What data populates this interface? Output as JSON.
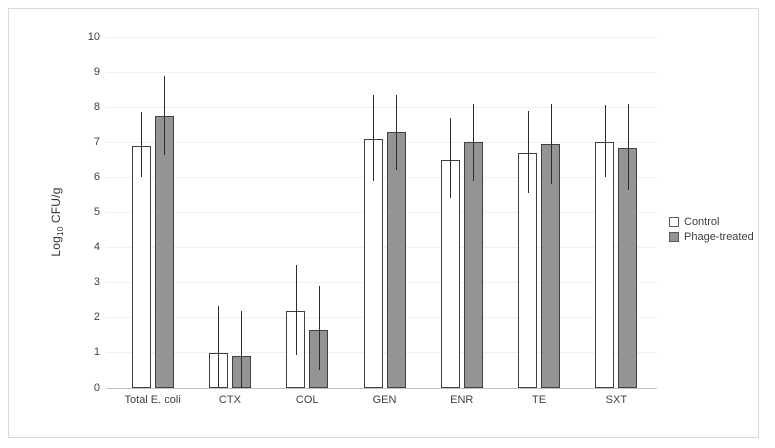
{
  "chart_data": {
    "type": "bar",
    "title": "",
    "ylabel": "Log10 CFU/g",
    "ylabel_parts": {
      "prefix": "Log",
      "sub": "10",
      "suffix": " CFU/g"
    },
    "categories": [
      "Total E. coli",
      "CTX",
      "COL",
      "GEN",
      "ENR",
      "TE",
      "SXT"
    ],
    "series": [
      {
        "name": "Control",
        "fill": "#ffffff",
        "values": [
          6.9,
          1.0,
          2.2,
          7.1,
          6.5,
          6.7,
          7.0
        ],
        "error_low": [
          6.0,
          0.0,
          0.95,
          5.9,
          5.4,
          5.55,
          6.0
        ],
        "error_high": [
          7.85,
          2.35,
          3.5,
          8.35,
          7.7,
          7.9,
          8.05
        ]
      },
      {
        "name": "Phage-treated",
        "fill": "#949494",
        "values": [
          7.75,
          0.9,
          1.65,
          7.3,
          7.0,
          6.95,
          6.85
        ],
        "error_low": [
          6.65,
          0.0,
          0.5,
          6.2,
          5.9,
          5.8,
          5.65
        ],
        "error_high": [
          8.9,
          2.2,
          2.9,
          8.35,
          8.1,
          8.1,
          8.1
        ]
      }
    ],
    "ylim": [
      0,
      10
    ],
    "yticks": [
      0,
      1,
      2,
      3,
      4,
      5,
      6,
      7,
      8,
      9,
      10
    ],
    "grid": true,
    "legend_position": "right"
  },
  "colors": {
    "bar_border": "#404040",
    "control_fill": "#ffffff",
    "phage_fill": "#949494",
    "error_bar": "#2b2b2b",
    "gridline": "#f0f0f0",
    "axis_line": "#c3c3c3",
    "frame_border": "#d9d9d9",
    "text": "#404040"
  }
}
